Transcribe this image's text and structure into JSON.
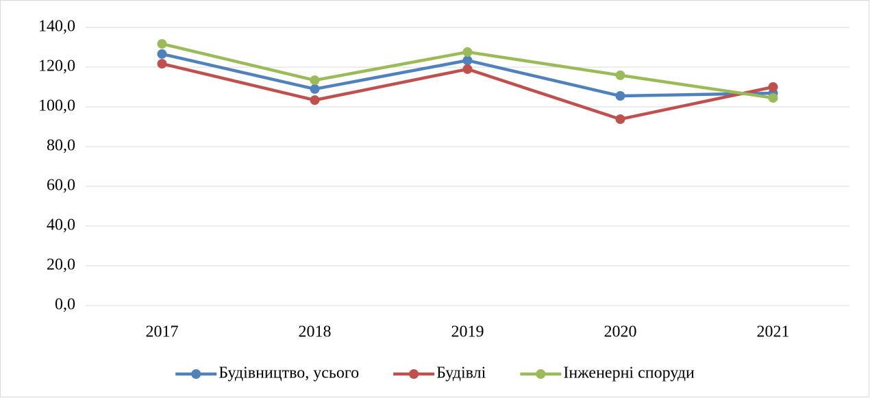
{
  "chart_data": {
    "type": "line",
    "categories": [
      "2017",
      "2018",
      "2019",
      "2020",
      "2021"
    ],
    "series": [
      {
        "name": "Будівництво, усього",
        "color": "#4f81bd",
        "values": [
          126.6,
          109.0,
          123.4,
          105.5,
          106.9
        ]
      },
      {
        "name": "Будівлі",
        "color": "#c0504d",
        "values": [
          121.7,
          103.4,
          119.0,
          93.8,
          110.0
        ]
      },
      {
        "name": "Інженерні споруди",
        "color": "#9bbb59",
        "values": [
          131.7,
          113.4,
          127.6,
          115.9,
          104.5
        ]
      }
    ],
    "ylim": [
      0,
      140
    ],
    "yticks": [
      {
        "value": 0,
        "label": "0,0"
      },
      {
        "value": 20,
        "label": "20,0"
      },
      {
        "value": 40,
        "label": "40,0"
      },
      {
        "value": 60,
        "label": "60,0"
      },
      {
        "value": 80,
        "label": "80,0"
      },
      {
        "value": 100,
        "label": "100,0"
      },
      {
        "value": 120,
        "label": "120,0"
      },
      {
        "value": 140,
        "label": "140,0"
      }
    ],
    "grid": true,
    "legend": "bottom"
  }
}
